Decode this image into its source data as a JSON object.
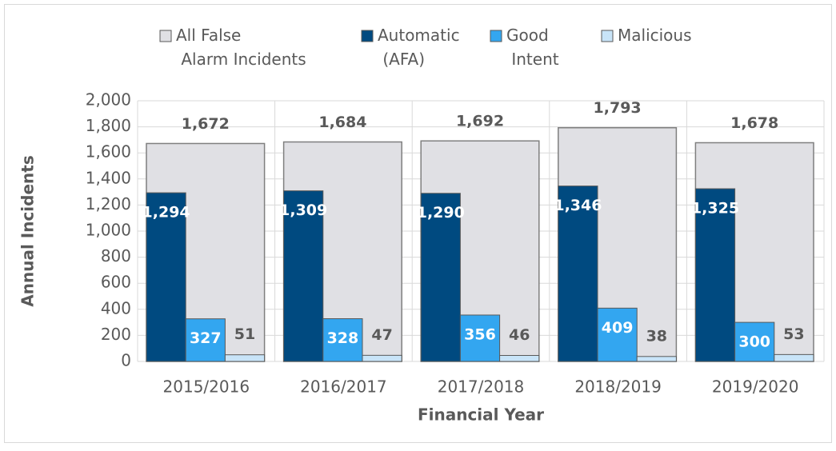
{
  "chart_data": {
    "type": "bar",
    "x_label": "Financial Year",
    "y_label": "Annual Incidents",
    "categories": [
      "2015/2016",
      "2016/2017",
      "2017/2018",
      "2018/2019",
      "2019/2020"
    ],
    "series": [
      {
        "name": "All False Alarm Incidents",
        "color": "#e0e0e4",
        "values": [
          1672,
          1684,
          1692,
          1793,
          1678
        ],
        "value_labels": [
          "1,672",
          "1,684",
          "1,692",
          "1,793",
          "1,678"
        ]
      },
      {
        "name": "Automatic (AFA)",
        "color": "#004a80",
        "values": [
          1294,
          1309,
          1290,
          1346,
          1325
        ],
        "value_labels": [
          "1,294",
          "1,309",
          "1,290",
          "1,346",
          "1,325"
        ]
      },
      {
        "name": "Good Intent",
        "color": "#33a6f0",
        "values": [
          327,
          328,
          356,
          409,
          300
        ]
      },
      {
        "name": "Malicious",
        "color": "#c8e4f8",
        "values": [
          51,
          47,
          46,
          38,
          53
        ]
      }
    ],
    "ylim": [
      0,
      2000
    ],
    "yticks": [
      0,
      200,
      400,
      600,
      800,
      {
        "value": 1000,
        "label": "1,000"
      },
      {
        "value": 1200,
        "label": "1,200"
      },
      {
        "value": 1400,
        "label": "1,400"
      },
      {
        "value": 1600,
        "label": "1,600"
      },
      {
        "value": 1800,
        "label": "1,800"
      },
      {
        "value": 2000,
        "label": "2,000"
      }
    ],
    "grid": true,
    "legend": "top"
  }
}
